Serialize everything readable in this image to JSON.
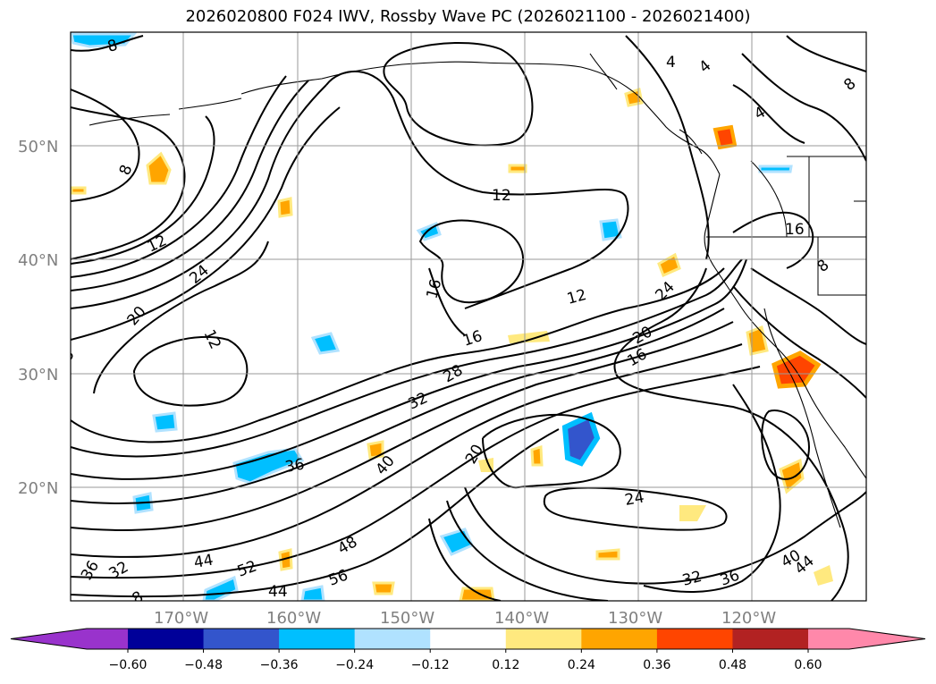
{
  "title": "2026020800 F024 IWV, Rossby Wave PC (2026021100 - 2026021400)",
  "lat_labels": [
    "50°N",
    "40°N",
    "30°N",
    "20°N"
  ],
  "lon_labels": [
    "170°W",
    "160°W",
    "150°W",
    "140°W",
    "130°W",
    "120°W"
  ],
  "contour_labels": [
    "8",
    "12",
    "24",
    "20",
    "12",
    "8",
    "8",
    "12",
    "16",
    "12",
    "16",
    "28",
    "32",
    "36",
    "40",
    "20",
    "24",
    "32",
    "36",
    "40",
    "44",
    "44",
    "52",
    "44",
    "48",
    "56",
    "36",
    "32",
    "24",
    "20",
    "16",
    "8",
    "4",
    "4",
    "4",
    "16",
    "8",
    "8"
  ],
  "colorbar": {
    "colors": [
      "#9933cc",
      "#000099",
      "#3355cc",
      "#00bfff",
      "#b0e2ff",
      "#ffffff",
      "#ffe97f",
      "#ffa500",
      "#ff4500",
      "#b22222",
      "#ff88aa"
    ],
    "labels": [
      "−0.60",
      "−0.48",
      "−0.36",
      "−0.24",
      "−0.12",
      "0.12",
      "0.24",
      "0.36",
      "0.48",
      "0.60"
    ]
  }
}
